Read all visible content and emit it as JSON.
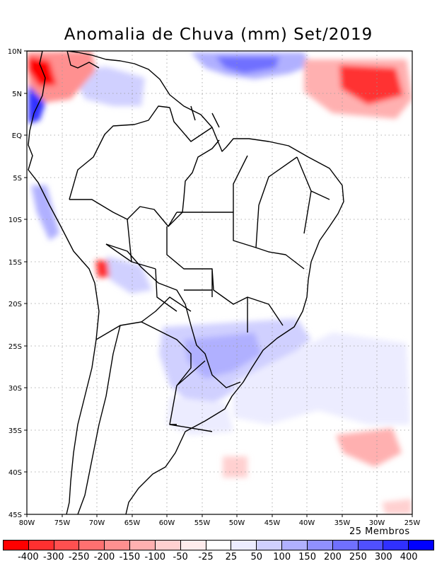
{
  "title": "Anomalia de Chuva (mm) Set/2019",
  "subtitle": "25 Membros",
  "lat_labels": [
    "10N",
    "5N",
    "EQ",
    "5S",
    "10S",
    "15S",
    "20S",
    "25S",
    "30S",
    "35S",
    "40S",
    "45S"
  ],
  "lon_labels": [
    "80W",
    "75W",
    "70W",
    "65W",
    "60W",
    "55W",
    "50W",
    "45W",
    "40W",
    "35W",
    "30W",
    "25W"
  ],
  "colorbar": {
    "colors": [
      "#ff0000",
      "#ff3030",
      "#ff5050",
      "#ff7070",
      "#ff9090",
      "#ffb0b0",
      "#ffd0d0",
      "#ffecec",
      "#ffffff",
      "#ececff",
      "#d0d0ff",
      "#b0b0ff",
      "#9090ff",
      "#7070ff",
      "#5050ff",
      "#3030ff",
      "#0000ff"
    ],
    "labels": [
      "-400",
      "-300",
      "-250",
      "-200",
      "-150",
      "-100",
      "-50",
      "-25",
      "25",
      "50",
      "100",
      "150",
      "200",
      "250",
      "300",
      "400"
    ]
  },
  "map_extent": {
    "lon": [
      -80,
      -25
    ],
    "lat": [
      -45,
      10
    ]
  },
  "grid": "dotted"
}
